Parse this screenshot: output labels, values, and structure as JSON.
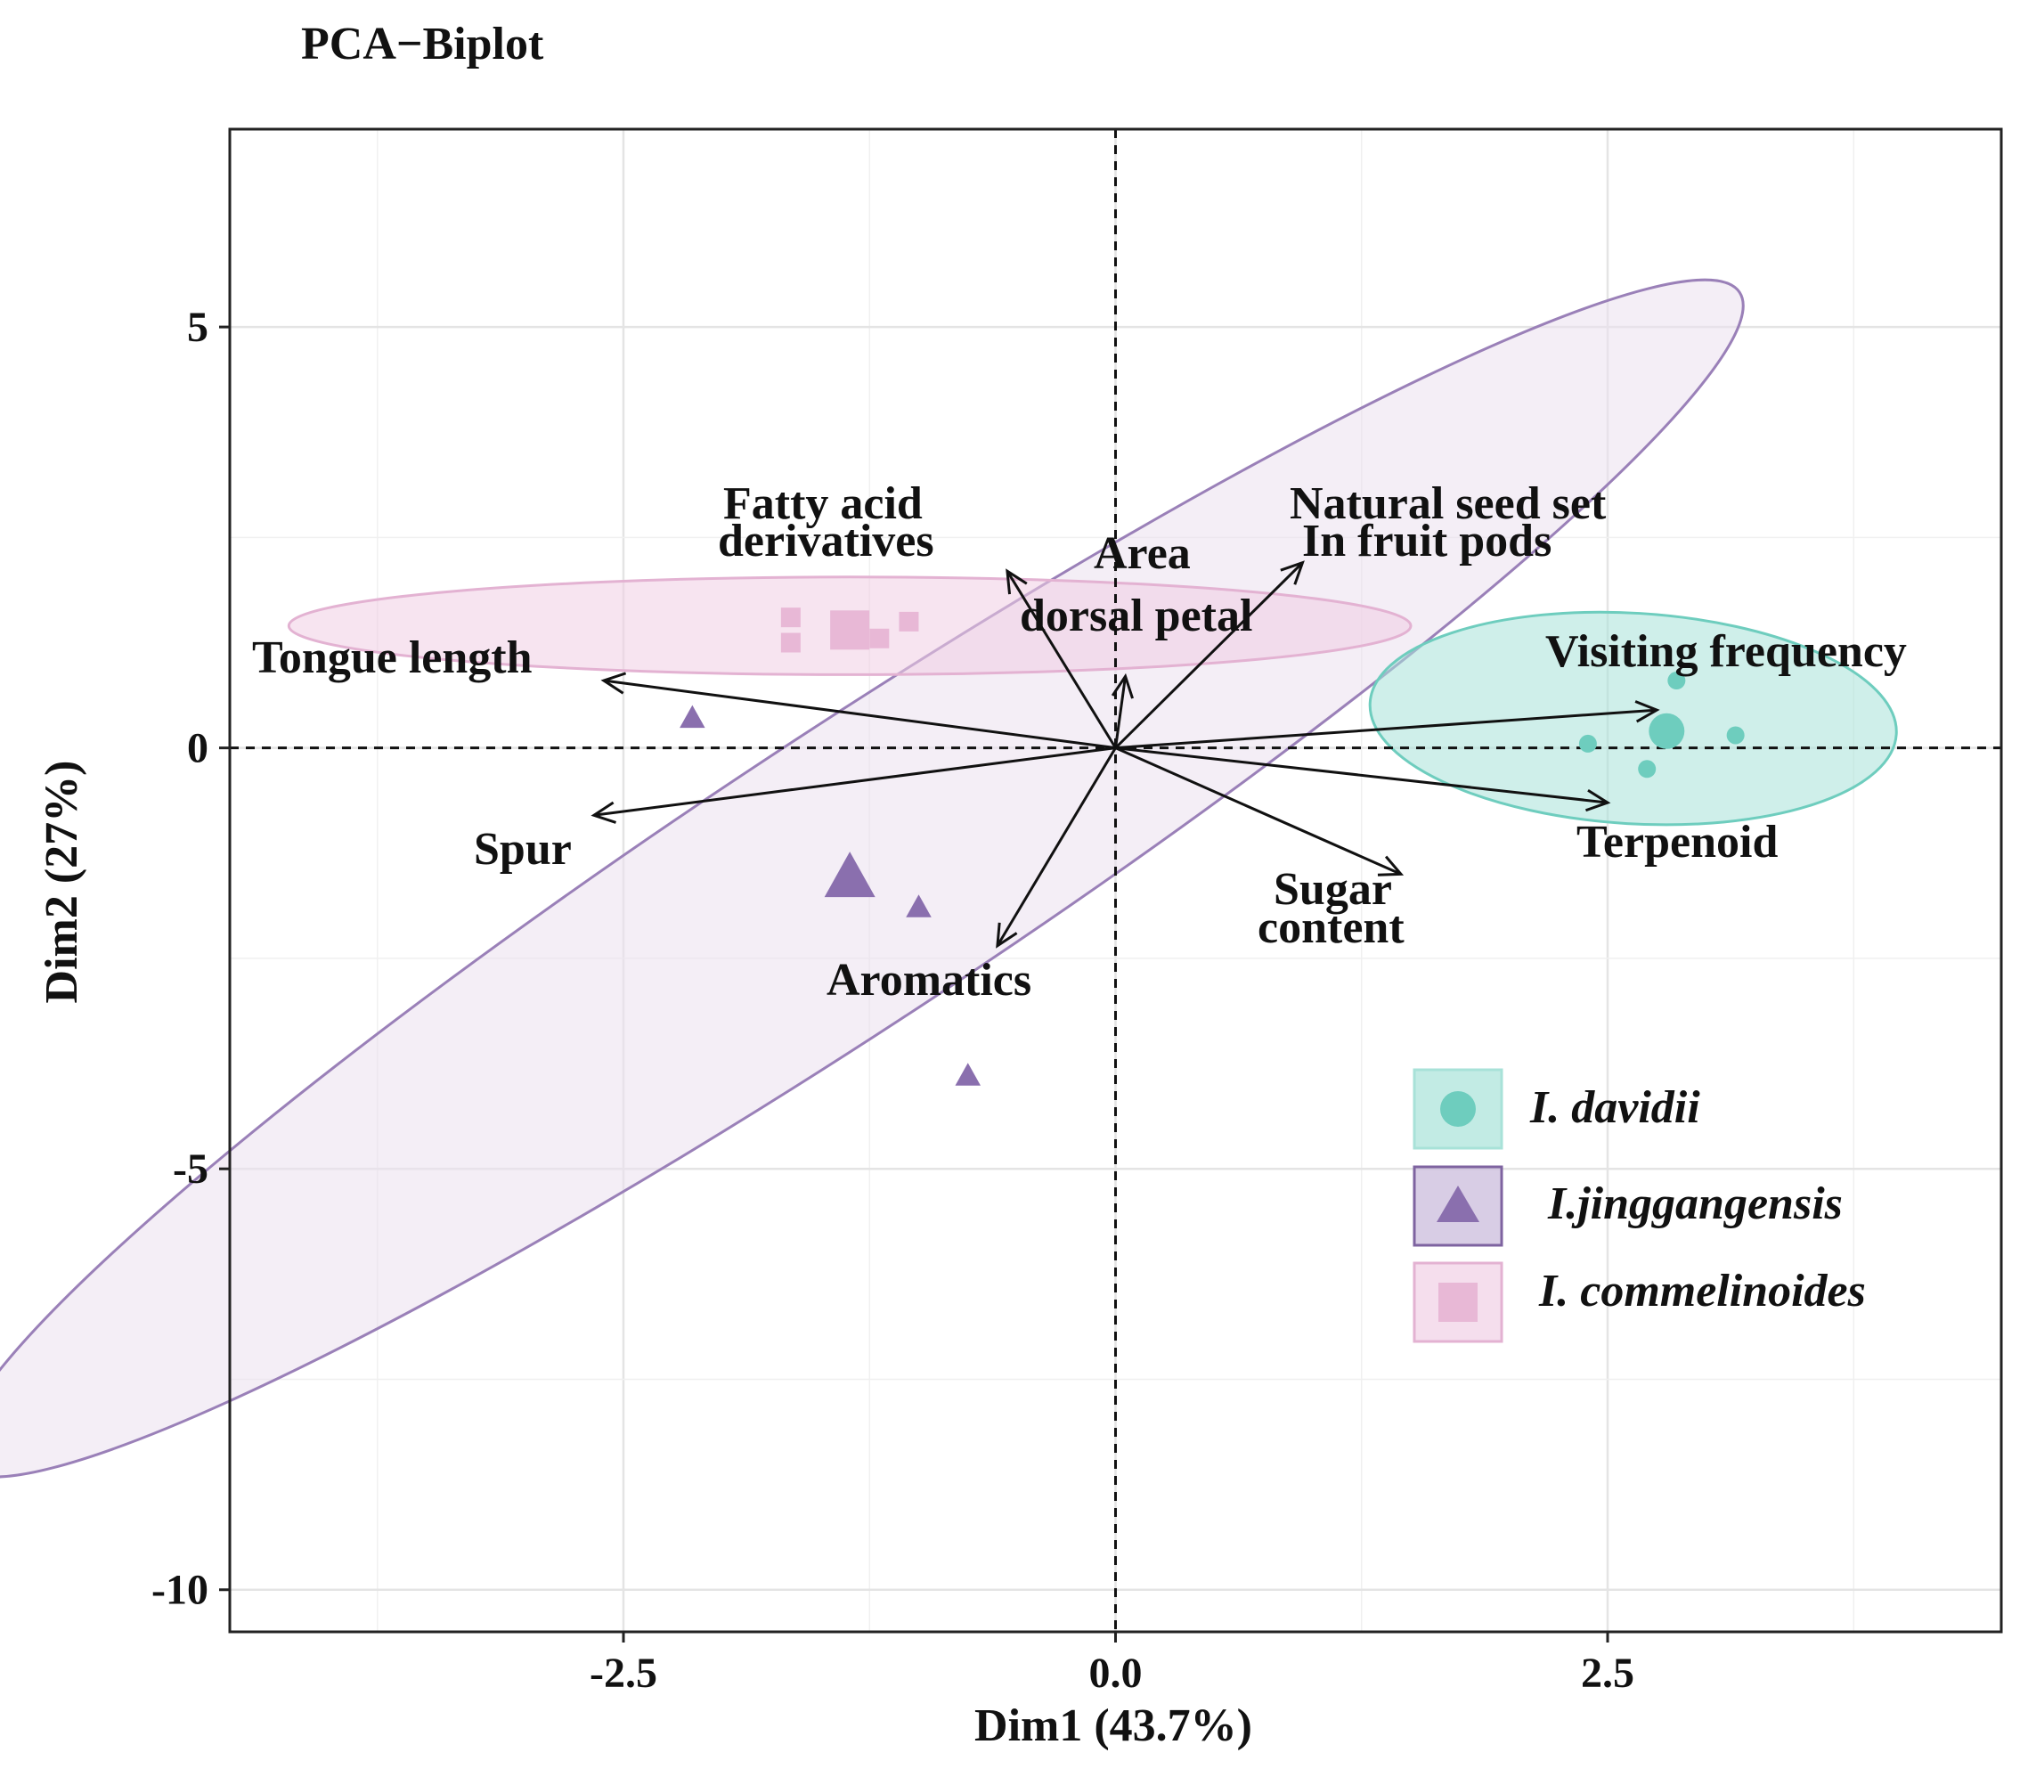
{
  "chart_data": {
    "type": "scatter",
    "title": "PCA−Biplot",
    "xlabel": "Dim1 (43.7%)",
    "ylabel": "Dim2 (27%)",
    "xlim": [
      -4.5,
      4.5
    ],
    "ylim": [
      -10.5,
      7.35
    ],
    "xticks": [
      -2.5,
      0.0,
      2.5
    ],
    "xtick_labels": [
      "-2.5",
      "0.0",
      "2.5"
    ],
    "yticks": [
      5,
      0,
      -5,
      -10
    ],
    "ytick_labels": [
      "5",
      "0",
      "-5",
      "-10"
    ],
    "grid": true,
    "reference_lines": [
      "x = 0 (dashed)",
      "y = 0 (dashed)"
    ],
    "legend_position": "bottom-right",
    "series": [
      {
        "name": "I. davidii",
        "marker": "circle",
        "color": "#6ecdbe",
        "points": [
          [
            2.85,
            0.8
          ],
          [
            2.4,
            0.05
          ],
          [
            2.7,
            -0.25
          ],
          [
            3.15,
            0.15
          ],
          [
            2.8,
            0.2
          ]
        ],
        "centroid": [
          2.8,
          0.2
        ],
        "ellipse": {
          "cx": 2.63,
          "cy": 0.35,
          "rx": 1.35,
          "ry": 1.2,
          "angle": -8
        }
      },
      {
        "name": "I.jinggangensis",
        "marker": "triangle",
        "color": "#9a80b8",
        "points": [
          [
            -2.15,
            0.35
          ],
          [
            -1.0,
            -1.9
          ],
          [
            -0.75,
            -3.9
          ],
          [
            -1.35,
            -1.55
          ]
        ],
        "centroid": [
          -1.35,
          -1.55
        ],
        "ellipse": {
          "cx": -1.35,
          "cy": -1.55,
          "rx": 8.3,
          "ry": 0.85,
          "angle": 57
        }
      },
      {
        "name": "I. commelinoides",
        "marker": "square",
        "color": "#e8b8d6",
        "points": [
          [
            -1.65,
            1.55
          ],
          [
            -1.65,
            1.25
          ],
          [
            -1.2,
            1.3
          ],
          [
            -1.05,
            1.5
          ],
          [
            -1.35,
            1.4
          ]
        ],
        "centroid": [
          -1.35,
          1.4
        ],
        "ellipse": {
          "cx": -1.35,
          "cy": 1.45,
          "rx": 2.85,
          "ry": 0.58,
          "angle": 0
        }
      }
    ],
    "variables": [
      {
        "name": "Tongue length",
        "x": -2.6,
        "y": 0.8
      },
      {
        "name": "Spur",
        "x": -2.65,
        "y": -0.8
      },
      {
        "name": "Fatty acid derivatives",
        "x": -0.55,
        "y": 2.1
      },
      {
        "name": "Area dorsal petal",
        "x": 0.05,
        "y": 0.85
      },
      {
        "name": "Natural seed set In fruit pods",
        "x": 0.95,
        "y": 2.2
      },
      {
        "name": "Visiting frequency",
        "x": 2.75,
        "y": 0.45
      },
      {
        "name": "Terpenoid",
        "x": 2.5,
        "y": -0.65
      },
      {
        "name": "Sugar content",
        "x": 1.45,
        "y": -1.5
      },
      {
        "name": "Aromatics",
        "x": -0.6,
        "y": -2.35
      }
    ],
    "variable_labels": {
      "tongue": "Tongue length",
      "spur": "Spur",
      "fatty1": "Fatty acid",
      "fatty2": "derivatives",
      "area1": "Area",
      "area2": "dorsal petal",
      "seed1": "Natural seed set",
      "seed2": "In fruit pods",
      "visiting": "Visiting frequency",
      "terpenoid": "Terpenoid",
      "sugar1": "Sugar",
      "sugar2": "content",
      "aromatics": "Aromatics"
    },
    "legend": [
      "I. davidii",
      "I.jinggangensis",
      "I. commelinoides"
    ]
  }
}
